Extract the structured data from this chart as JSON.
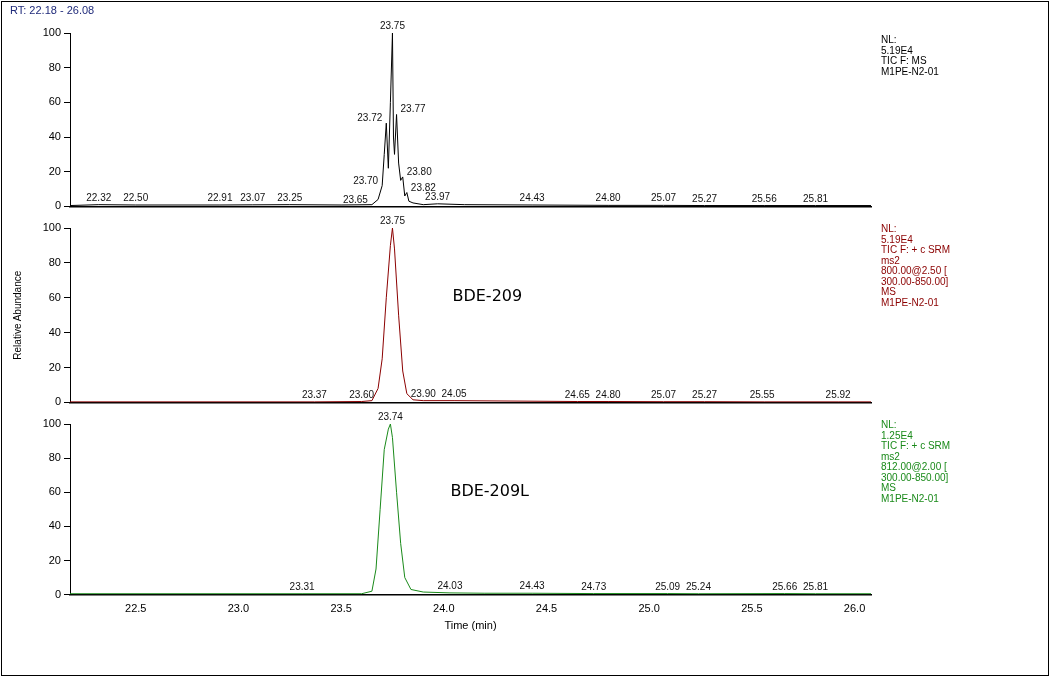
{
  "chart_data": [
    {
      "type": "line",
      "title": "RT: 22.18 - 26.08",
      "xlim": [
        22.18,
        26.08
      ],
      "ylim": [
        0,
        100
      ],
      "yticks": [
        0,
        20,
        40,
        60,
        80,
        100
      ],
      "tick_labels": "y",
      "grid": false,
      "legend": false,
      "marker": "none",
      "series": [
        {
          "color": "#000000",
          "x": [
            22.18,
            22.32,
            22.5,
            22.91,
            23.07,
            23.25,
            23.5,
            23.65,
            23.68,
            23.7,
            23.71,
            23.72,
            23.73,
            23.74,
            23.75,
            23.755,
            23.76,
            23.77,
            23.78,
            23.79,
            23.8,
            23.81,
            23.82,
            23.83,
            23.85,
            23.9,
            23.97,
            24.1,
            24.43,
            24.8,
            25.07,
            25.27,
            25.56,
            25.81,
            26.08
          ],
          "values": [
            0.5,
            1,
            0.8,
            0.8,
            0.9,
            1,
            0.8,
            1,
            4,
            12,
            30,
            48,
            22,
            60,
            100,
            40,
            30,
            53,
            25,
            15,
            17,
            6,
            8,
            3,
            2,
            1,
            1.5,
            1,
            0.8,
            0.6,
            0.6,
            0.5,
            0.5,
            0.5,
            0.5
          ]
        }
      ],
      "annotations": [
        {
          "text": "22.32",
          "x": 22.32,
          "y": 1
        },
        {
          "text": "22.50",
          "x": 22.5,
          "y": 0.8
        },
        {
          "text": "22.91",
          "x": 22.91,
          "y": 0.8
        },
        {
          "text": "23.07",
          "x": 23.07,
          "y": 0.9
        },
        {
          "text": "23.25",
          "x": 23.25,
          "y": 1
        },
        {
          "text": "23.65",
          "x": 23.65,
          "y": 1
        },
        {
          "text": "23.70",
          "x": 23.7,
          "y": 12
        },
        {
          "text": "23.72",
          "x": 23.72,
          "y": 48
        },
        {
          "text": "23.75",
          "x": 23.75,
          "y": 100
        },
        {
          "text": "23.77",
          "x": 23.77,
          "y": 53
        },
        {
          "text": "23.80",
          "x": 23.8,
          "y": 17
        },
        {
          "text": "23.82",
          "x": 23.82,
          "y": 8
        },
        {
          "text": "23.97",
          "x": 23.97,
          "y": 1.5
        },
        {
          "text": "24.43",
          "x": 24.43,
          "y": 0.8
        },
        {
          "text": "24.80",
          "x": 24.8,
          "y": 0.6
        },
        {
          "text": "25.07",
          "x": 25.07,
          "y": 0.6
        },
        {
          "text": "25.27",
          "x": 25.27,
          "y": 0.5
        },
        {
          "text": "25.56",
          "x": 25.56,
          "y": 0.5
        },
        {
          "text": "25.81",
          "x": 25.81,
          "y": 0.5
        },
        "NL:",
        "5.19E4",
        "TIC F: MS",
        "M1PE-N2-01"
      ]
    },
    {
      "type": "line",
      "ylabel": "Relative Abundance",
      "xlim": [
        22.18,
        26.08
      ],
      "ylim": [
        0,
        100
      ],
      "yticks": [
        0,
        20,
        40,
        60,
        80,
        100
      ],
      "tick_labels": "y",
      "grid": false,
      "legend": false,
      "marker": "none",
      "series": [
        {
          "name": "BDE-209",
          "color": "#8b0000",
          "x": [
            22.18,
            23.37,
            23.6,
            23.65,
            23.68,
            23.7,
            23.72,
            23.74,
            23.75,
            23.76,
            23.78,
            23.8,
            23.82,
            23.85,
            23.9,
            24.05,
            24.65,
            24.8,
            25.07,
            25.27,
            25.56,
            25.92,
            26.08
          ],
          "values": [
            0.3,
            0.3,
            0.5,
            1,
            8,
            25,
            60,
            90,
            100,
            88,
            50,
            18,
            5,
            1.5,
            1,
            1,
            0.5,
            0.5,
            0.4,
            0.4,
            0.3,
            0.3,
            0.3
          ]
        }
      ],
      "annotations": [
        {
          "text": "23.75",
          "x": 23.75,
          "y": 100
        },
        {
          "text": "23.37",
          "x": 23.37,
          "y": 0.3
        },
        {
          "text": "23.60",
          "x": 23.6,
          "y": 0.5
        },
        {
          "text": "23.90",
          "x": 23.9,
          "y": 1
        },
        {
          "text": "24.05",
          "x": 24.05,
          "y": 1
        },
        {
          "text": "24.65",
          "x": 24.65,
          "y": 0.5
        },
        {
          "text": "24.80",
          "x": 24.8,
          "y": 0.5
        },
        {
          "text": "25.07",
          "x": 25.07,
          "y": 0.4
        },
        {
          "text": "25.27",
          "x": 25.27,
          "y": 0.4
        },
        {
          "text": "25.55",
          "x": 25.55,
          "y": 0.3
        },
        {
          "text": "25.92",
          "x": 25.92,
          "y": 0.3
        },
        "NL:",
        "5.19E4",
        "TIC F: + c SRM",
        "ms2",
        "800.00@2.50 [",
        "300.00-850.00]",
        "MS",
        "M1PE-N2-01"
      ]
    },
    {
      "type": "line",
      "xlabel": "Time (min)",
      "xlim": [
        22.18,
        26.08
      ],
      "xticks": [
        22.5,
        {
          "value": 23,
          "label": "23.0"
        },
        23.5,
        {
          "value": 24,
          "label": "24.0"
        },
        24.5,
        {
          "value": 25,
          "label": "25.0"
        },
        25.5,
        {
          "value": 26,
          "label": "26.0"
        }
      ],
      "ylim": [
        0,
        100
      ],
      "yticks": [
        0,
        20,
        40,
        60,
        80,
        100
      ],
      "grid": false,
      "legend": false,
      "marker": "none",
      "series": [
        {
          "name": "BDE-209L",
          "color": "#1a8a1a",
          "x": [
            22.18,
            23.31,
            23.6,
            23.65,
            23.67,
            23.69,
            23.71,
            23.73,
            23.74,
            23.75,
            23.77,
            23.79,
            23.81,
            23.84,
            23.9,
            24.03,
            24.2,
            24.43,
            24.73,
            25.09,
            25.24,
            25.66,
            25.81,
            26.08
          ],
          "values": [
            0.5,
            0.5,
            0.5,
            2,
            15,
            50,
            85,
            97,
            100,
            92,
            60,
            30,
            10,
            3,
            1.5,
            1,
            0.8,
            0.8,
            0.6,
            0.6,
            0.5,
            0.6,
            0.5,
            0.5
          ]
        }
      ],
      "annotations": [
        {
          "text": "23.74",
          "x": 23.74,
          "y": 100
        },
        {
          "text": "23.31",
          "x": 23.31,
          "y": 0.5
        },
        {
          "text": "24.03",
          "x": 24.03,
          "y": 1
        },
        {
          "text": "24.43",
          "x": 24.43,
          "y": 0.8
        },
        {
          "text": "24.73",
          "x": 24.73,
          "y": 0.6
        },
        {
          "text": "25.09",
          "x": 25.09,
          "y": 0.6
        },
        {
          "text": "25.24",
          "x": 25.24,
          "y": 0.5
        },
        {
          "text": "25.66",
          "x": 25.66,
          "y": 0.6
        },
        {
          "text": "25.81",
          "x": 25.81,
          "y": 0.5
        },
        "NL:",
        "1.25E4",
        "TIC F: + c SRM",
        "ms2",
        "812.00@2.00 [",
        "300.00-850.00]",
        "MS",
        "M1PE-N2-01"
      ]
    }
  ]
}
